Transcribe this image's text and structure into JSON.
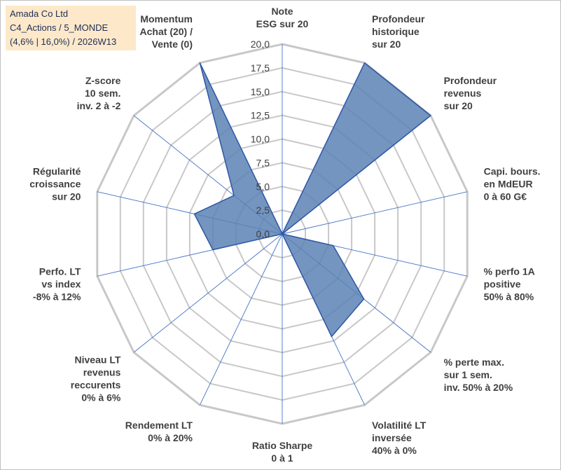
{
  "header": {
    "line1": "Amada Co Ltd",
    "line2": "C4_Actions / 5_MONDE",
    "line3": "(4,6% | 16,0%) / 2026W13"
  },
  "colors": {
    "fill": "#5a82b4",
    "stroke": "#2f56a6",
    "grid": "#c8c8c8",
    "axis": "#4472c4",
    "header_bg": "#fde9c9"
  },
  "chart_data": {
    "type": "radar",
    "title": "",
    "rmin": 0,
    "rmax": 20,
    "tick_step": 2.5,
    "ticks": [
      "0,0",
      "2,5",
      "5,0",
      "7,5",
      "10,0",
      "12,5",
      "15,0",
      "17,5",
      "20,0"
    ],
    "grid": true,
    "axes": [
      {
        "label": [
          "Note",
          "ESG sur 20"
        ],
        "value": 0
      },
      {
        "label": [
          "Profondeur",
          "historique",
          "sur 20"
        ],
        "value": 20
      },
      {
        "label": [
          "Profondeur",
          "revenus",
          "sur 20"
        ],
        "value": 20
      },
      {
        "label": [
          "Capi. bours.",
          "en MdEUR",
          "0 à 60 G€"
        ],
        "value": 0
      },
      {
        "label": [
          "% perfo 1A",
          "positive",
          "50% à 80%"
        ],
        "value": 5.5
      },
      {
        "label": [
          "% perte max.",
          "sur 1 sem.",
          "inv. 50% à 20%"
        ],
        "value": 11
      },
      {
        "label": [
          "Volatilité LT",
          "inversée",
          "40% à 0%"
        ],
        "value": 12
      },
      {
        "label": [
          "Ratio Sharpe",
          "0 à 1"
        ],
        "value": 0
      },
      {
        "label": [
          "Rendement LT",
          "0% à 20%"
        ],
        "value": 0
      },
      {
        "label": [
          "Niveau LT",
          "revenus",
          "reccurents",
          "0% à 6%"
        ],
        "value": 0
      },
      {
        "label": [
          "Perfo. LT",
          "vs index",
          "-8% à 12%"
        ],
        "value": 7.5
      },
      {
        "label": [
          "Régularité",
          "croissance",
          "sur 20"
        ],
        "value": 9.5
      },
      {
        "label": [
          "Z-score",
          "10 sem.",
          "inv. 2 à -2"
        ],
        "value": 6.5
      },
      {
        "label": [
          "Momentum",
          "Achat (20) /",
          "Vente (0)"
        ],
        "value": 20
      }
    ]
  }
}
